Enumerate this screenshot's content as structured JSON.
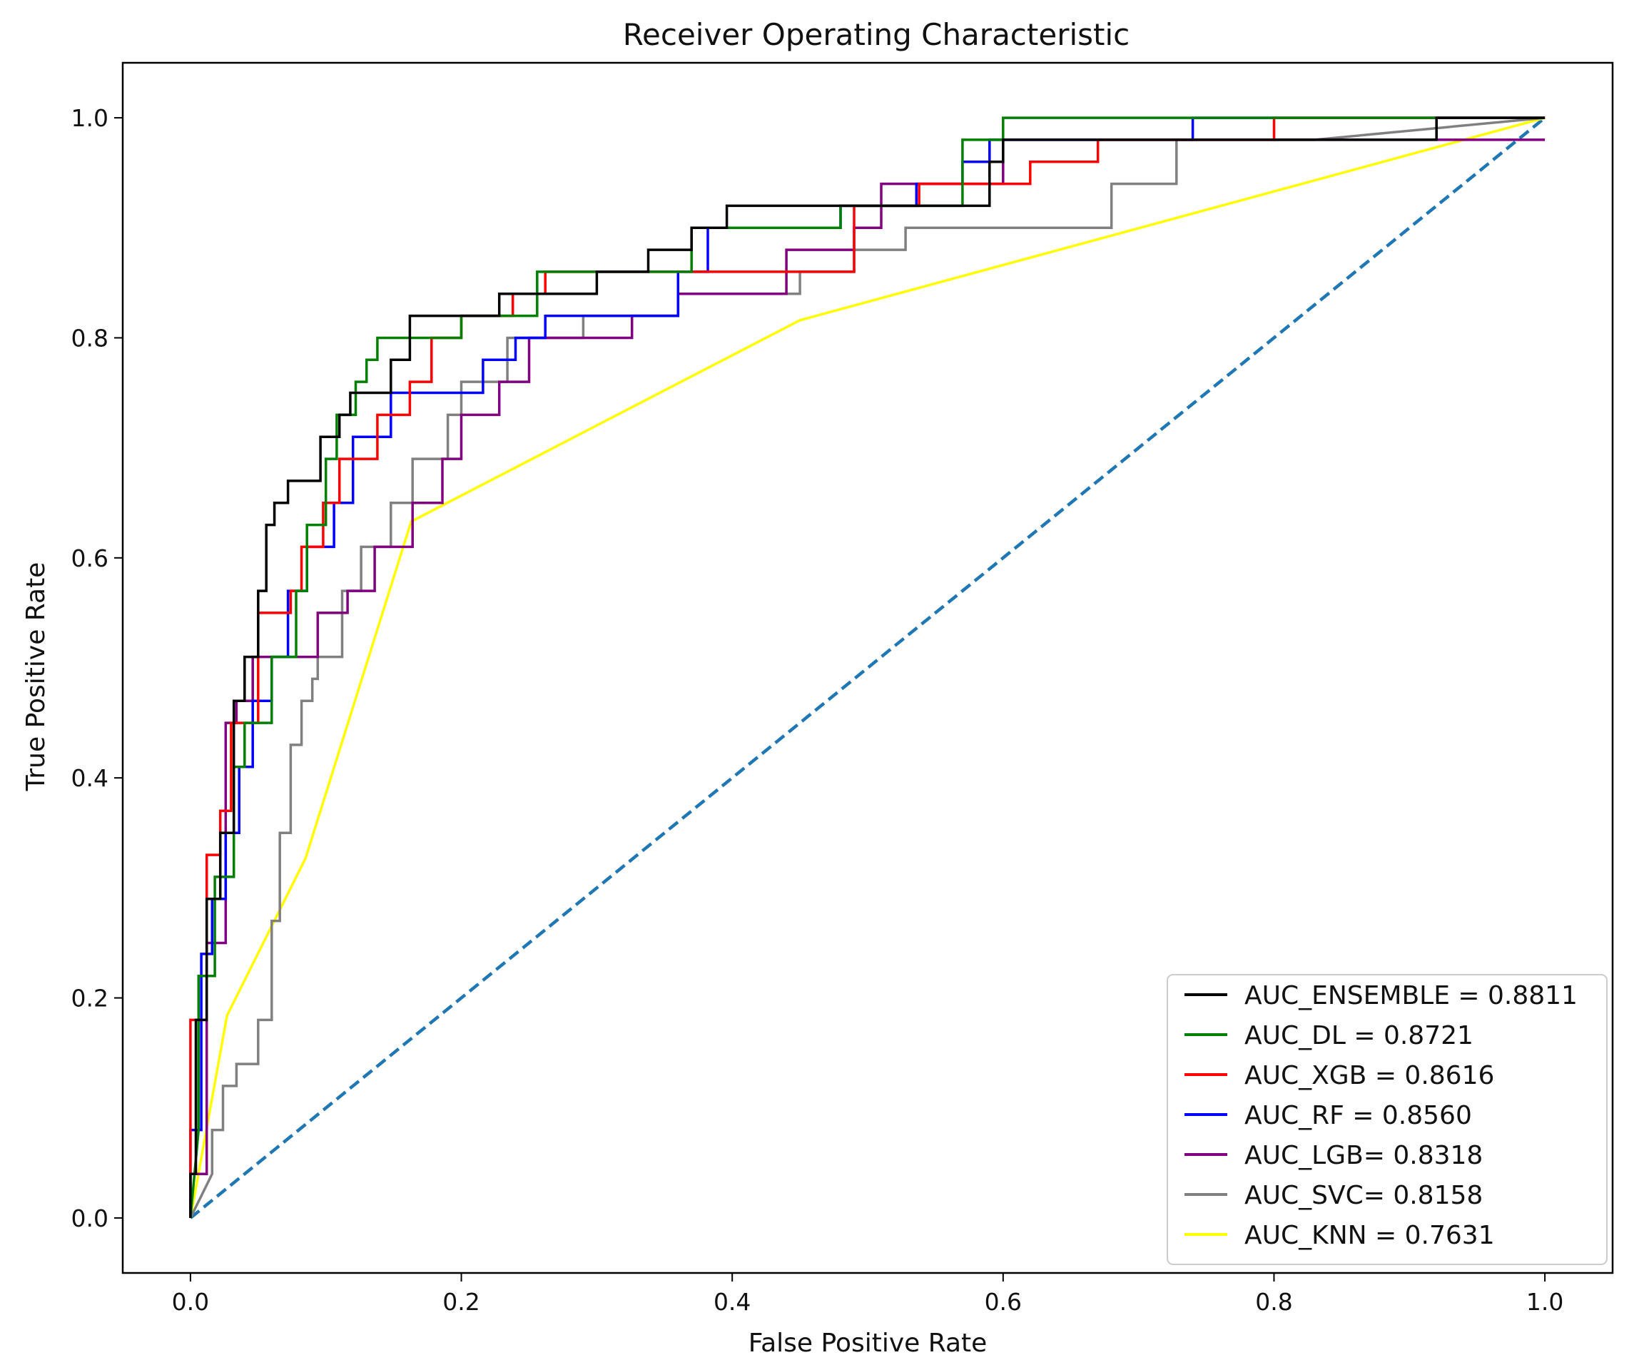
{
  "chart_data": {
    "type": "line",
    "title": "Receiver Operating Characteristic",
    "xlabel": "False Positive Rate",
    "ylabel": "True Positive Rate",
    "xlim": [
      -0.05,
      1.05
    ],
    "ylim": [
      -0.05,
      1.05
    ],
    "xticks": [
      "0.0",
      "0.2",
      "0.4",
      "0.6",
      "0.8",
      "1.0"
    ],
    "yticks": [
      "0.0",
      "0.2",
      "0.4",
      "0.6",
      "0.8",
      "1.0"
    ],
    "grid": false,
    "legend_position": "lower-right",
    "reference_line": {
      "x": [
        0,
        1
      ],
      "y": [
        0,
        1
      ],
      "color": "#1f77b4",
      "style": "dashed"
    },
    "series": [
      {
        "name": "AUC_ENSEMBLE = 0.8811",
        "color": "#000000",
        "x": [
          0,
          0,
          0.004,
          0.004,
          0.012,
          0.012,
          0.022,
          0.022,
          0.032,
          0.032,
          0.04,
          0.04,
          0.05,
          0.05,
          0.056,
          0.056,
          0.062,
          0.062,
          0.072,
          0.072,
          0.096,
          0.096,
          0.11,
          0.11,
          0.118,
          0.118,
          0.148,
          0.148,
          0.162,
          0.162,
          0.228,
          0.228,
          0.3,
          0.3,
          0.338,
          0.338,
          0.37,
          0.37,
          0.396,
          0.396,
          0.59,
          0.59,
          0.6,
          0.6,
          0.92,
          0.92,
          1.0
        ],
        "y": [
          0,
          0.04,
          0.04,
          0.18,
          0.18,
          0.29,
          0.29,
          0.35,
          0.35,
          0.47,
          0.47,
          0.51,
          0.51,
          0.57,
          0.57,
          0.63,
          0.63,
          0.65,
          0.65,
          0.67,
          0.67,
          0.71,
          0.71,
          0.73,
          0.73,
          0.75,
          0.75,
          0.78,
          0.78,
          0.82,
          0.82,
          0.84,
          0.84,
          0.86,
          0.86,
          0.88,
          0.88,
          0.9,
          0.9,
          0.92,
          0.92,
          0.96,
          0.96,
          0.98,
          0.98,
          1.0,
          1.0
        ]
      },
      {
        "name": "AUC_DL = 0.8721",
        "color": "#008000",
        "x": [
          0,
          0.006,
          0.006,
          0.018,
          0.018,
          0.032,
          0.032,
          0.04,
          0.04,
          0.06,
          0.06,
          0.078,
          0.078,
          0.086,
          0.086,
          0.1,
          0.1,
          0.108,
          0.108,
          0.122,
          0.122,
          0.13,
          0.13,
          0.138,
          0.138,
          0.2,
          0.2,
          0.256,
          0.256,
          0.37,
          0.37,
          0.48,
          0.48,
          0.57,
          0.57,
          0.6,
          0.6,
          0.61,
          0.61,
          0.645,
          0.645,
          0.69,
          0.69,
          1.0
        ],
        "y": [
          0,
          0.08,
          0.22,
          0.22,
          0.31,
          0.31,
          0.41,
          0.41,
          0.45,
          0.45,
          0.51,
          0.51,
          0.57,
          0.57,
          0.63,
          0.63,
          0.69,
          0.69,
          0.73,
          0.73,
          0.76,
          0.76,
          0.78,
          0.78,
          0.8,
          0.8,
          0.82,
          0.82,
          0.86,
          0.86,
          0.9,
          0.9,
          0.92,
          0.92,
          0.98,
          0.98,
          1.0,
          1.0,
          1.0,
          1.0,
          1.0,
          1.0,
          1.0,
          1.0
        ]
      },
      {
        "name": "AUC_XGB = 0.8616",
        "color": "#ff0000",
        "x": [
          0,
          0,
          0.012,
          0.012,
          0.022,
          0.022,
          0.03,
          0.03,
          0.05,
          0.05,
          0.074,
          0.074,
          0.082,
          0.082,
          0.098,
          0.098,
          0.11,
          0.11,
          0.138,
          0.138,
          0.162,
          0.162,
          0.178,
          0.178,
          0.2,
          0.2,
          0.238,
          0.238,
          0.262,
          0.262,
          0.49,
          0.49,
          0.538,
          0.538,
          0.62,
          0.62,
          0.67,
          0.67,
          0.8,
          0.8,
          0.92,
          0.92,
          1.0
        ],
        "y": [
          0,
          0.18,
          0.18,
          0.33,
          0.33,
          0.37,
          0.37,
          0.45,
          0.45,
          0.55,
          0.55,
          0.57,
          0.57,
          0.61,
          0.61,
          0.65,
          0.65,
          0.69,
          0.69,
          0.73,
          0.73,
          0.76,
          0.76,
          0.8,
          0.8,
          0.82,
          0.82,
          0.84,
          0.84,
          0.86,
          0.86,
          0.92,
          0.92,
          0.94,
          0.94,
          0.96,
          0.96,
          0.98,
          0.98,
          1.0,
          1.0,
          1.0,
          1.0
        ]
      },
      {
        "name": "AUC_RF = 0.8560",
        "color": "#0000ff",
        "x": [
          0,
          0,
          0.008,
          0.008,
          0.016,
          0.016,
          0.026,
          0.026,
          0.036,
          0.036,
          0.046,
          0.046,
          0.06,
          0.06,
          0.072,
          0.072,
          0.086,
          0.086,
          0.106,
          0.106,
          0.12,
          0.12,
          0.148,
          0.148,
          0.216,
          0.216,
          0.24,
          0.24,
          0.262,
          0.262,
          0.36,
          0.36,
          0.382,
          0.382,
          0.48,
          0.48,
          0.536,
          0.536,
          0.57,
          0.57,
          0.59,
          0.59,
          0.74,
          0.74,
          0.8,
          0.8,
          1.0
        ],
        "y": [
          0,
          0.08,
          0.08,
          0.24,
          0.24,
          0.29,
          0.29,
          0.35,
          0.35,
          0.41,
          0.41,
          0.47,
          0.47,
          0.51,
          0.51,
          0.57,
          0.57,
          0.61,
          0.61,
          0.65,
          0.65,
          0.71,
          0.71,
          0.75,
          0.75,
          0.78,
          0.78,
          0.8,
          0.8,
          0.82,
          0.82,
          0.86,
          0.86,
          0.9,
          0.9,
          0.92,
          0.92,
          0.94,
          0.94,
          0.96,
          0.96,
          0.98,
          0.98,
          1.0,
          1.0,
          1.0,
          1.0
        ]
      },
      {
        "name": "AUC_LGB= 0.8318",
        "color": "#800080",
        "x": [
          0,
          0,
          0.012,
          0.012,
          0.026,
          0.026,
          0.034,
          0.034,
          0.046,
          0.046,
          0.062,
          0.062,
          0.094,
          0.094,
          0.116,
          0.116,
          0.136,
          0.136,
          0.164,
          0.164,
          0.186,
          0.186,
          0.2,
          0.2,
          0.228,
          0.228,
          0.25,
          0.25,
          0.326,
          0.326,
          0.36,
          0.36,
          0.44,
          0.44,
          0.49,
          0.49,
          0.51,
          0.51,
          0.6,
          0.6,
          0.74,
          0.74,
          1.0
        ],
        "y": [
          0,
          0.04,
          0.04,
          0.25,
          0.25,
          0.45,
          0.45,
          0.47,
          0.47,
          0.51,
          0.51,
          0.51,
          0.51,
          0.55,
          0.55,
          0.57,
          0.57,
          0.61,
          0.61,
          0.65,
          0.65,
          0.69,
          0.69,
          0.73,
          0.73,
          0.76,
          0.76,
          0.8,
          0.8,
          0.82,
          0.82,
          0.84,
          0.84,
          0.88,
          0.88,
          0.9,
          0.9,
          0.94,
          0.94,
          0.98,
          0.98,
          0.98,
          0.98
        ]
      },
      {
        "name": "AUC_SVC= 0.8158",
        "color": "#808080",
        "x": [
          0,
          0.016,
          0.016,
          0.024,
          0.024,
          0.034,
          0.034,
          0.05,
          0.05,
          0.06,
          0.06,
          0.066,
          0.066,
          0.074,
          0.074,
          0.082,
          0.082,
          0.09,
          0.09,
          0.094,
          0.094,
          0.112,
          0.112,
          0.126,
          0.126,
          0.148,
          0.148,
          0.164,
          0.164,
          0.19,
          0.19,
          0.2,
          0.2,
          0.234,
          0.234,
          0.29,
          0.29,
          0.36,
          0.36,
          0.45,
          0.45,
          0.49,
          0.49,
          0.528,
          0.528,
          0.68,
          0.68,
          0.728,
          0.728,
          0.83,
          0.83,
          1.0
        ],
        "y": [
          0,
          0.04,
          0.08,
          0.08,
          0.12,
          0.12,
          0.14,
          0.14,
          0.18,
          0.18,
          0.27,
          0.27,
          0.35,
          0.35,
          0.43,
          0.43,
          0.47,
          0.47,
          0.49,
          0.49,
          0.51,
          0.51,
          0.57,
          0.57,
          0.61,
          0.61,
          0.65,
          0.65,
          0.69,
          0.69,
          0.73,
          0.73,
          0.76,
          0.76,
          0.8,
          0.8,
          0.82,
          0.82,
          0.84,
          0.84,
          0.86,
          0.86,
          0.88,
          0.88,
          0.9,
          0.9,
          0.94,
          0.94,
          0.98,
          0.98,
          0.98,
          1.0
        ]
      },
      {
        "name": "AUC_KNN = 0.7631",
        "color": "#ffff00",
        "x": [
          0,
          0.027,
          0.085,
          0.163,
          0.45,
          1.0
        ],
        "y": [
          0,
          0.184,
          0.327,
          0.633,
          0.816,
          1.0
        ]
      }
    ]
  }
}
